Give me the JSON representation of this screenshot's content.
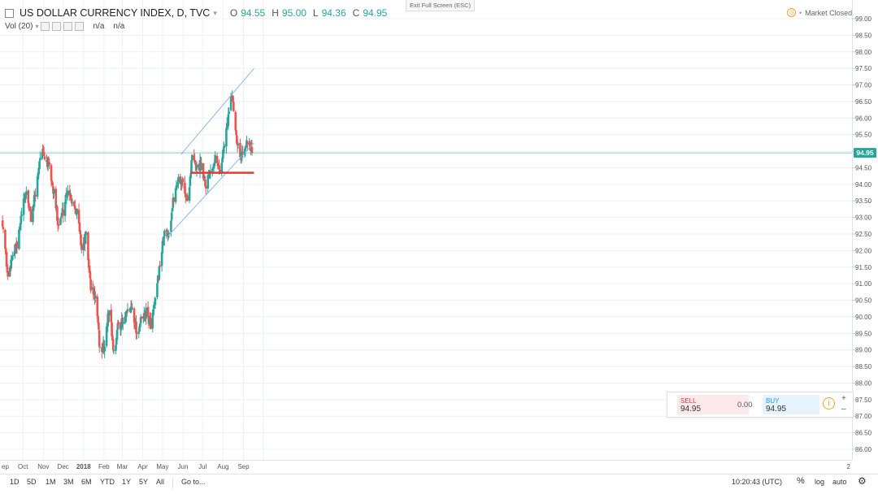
{
  "header": {
    "symbol": "US DOLLAR CURRENCY INDEX, D, TVC",
    "o_label": "O",
    "o_value": "94.55",
    "h_label": "H",
    "h_value": "95.00",
    "l_label": "L",
    "l_value": "94.36",
    "c_label": "C",
    "c_value": "94.95"
  },
  "volume": {
    "label": "Vol (20)",
    "v1": "n/a",
    "v2": "n/a"
  },
  "exit_fullscreen": "Exit Full Screen (ESC)",
  "market_status": "Market Closed",
  "current_price_label": "94.95",
  "trade_panel": {
    "sell_label": "SELL",
    "sell_value": "94.95",
    "spread": "0.00",
    "buy_label": "BUY",
    "buy_value": "94.95"
  },
  "bottom_bar": {
    "ranges": [
      "1D",
      "5D",
      "1M",
      "3M",
      "6M",
      "YTD",
      "1Y",
      "5Y",
      "All"
    ],
    "goto": "Go to...",
    "clock": "10:20:43 (UTC)",
    "percent": "%",
    "log": "log",
    "auto": "auto"
  },
  "colors": {
    "up": "#26a69a",
    "down": "#ef5350",
    "channel": "#8fb6e6",
    "support": "#e53935",
    "price_line": "#26a69a",
    "price_label_bg": "#26a69a"
  },
  "chart_data": {
    "type": "candlestick",
    "y_axis_ticks": [
      "86.00",
      "86.50",
      "87.00",
      "87.50",
      "88.00",
      "88.50",
      "89.00",
      "89.50",
      "90.00",
      "90.50",
      "91.00",
      "91.50",
      "92.00",
      "92.50",
      "93.00",
      "93.50",
      "94.00",
      "94.50",
      "95.00",
      "95.50",
      "96.00",
      "96.50",
      "97.00",
      "97.50",
      "98.00",
      "98.50",
      "99.00"
    ],
    "ylim": [
      85.8,
      99.3
    ],
    "x_axis_labels": [
      "ep",
      "Oct",
      "Nov",
      "Dec",
      "2018",
      "Feb",
      "Mar",
      "Apr",
      "May",
      "Jun",
      "Jul",
      "Aug",
      "Sep",
      "2"
    ],
    "last_price": 94.95,
    "anchors": [
      [
        "2017-08-31",
        92.9
      ],
      [
        "2017-09-08",
        91.2
      ],
      [
        "2017-09-15",
        91.9
      ],
      [
        "2017-09-22",
        92.1
      ],
      [
        "2017-09-29",
        93.1
      ],
      [
        "2017-10-06",
        93.8
      ],
      [
        "2017-10-13",
        93.0
      ],
      [
        "2017-10-20",
        93.7
      ],
      [
        "2017-10-27",
        94.9
      ],
      [
        "2017-11-03",
        94.8
      ],
      [
        "2017-11-10",
        94.5
      ],
      [
        "2017-11-17",
        93.7
      ],
      [
        "2017-11-24",
        92.8
      ],
      [
        "2017-12-01",
        93.2
      ],
      [
        "2017-12-08",
        93.9
      ],
      [
        "2017-12-15",
        93.5
      ],
      [
        "2017-12-22",
        93.2
      ],
      [
        "2017-12-29",
        92.1
      ],
      [
        "2018-01-05",
        92.4
      ],
      [
        "2018-01-12",
        90.9
      ],
      [
        "2018-01-19",
        90.6
      ],
      [
        "2018-01-26",
        89.0
      ],
      [
        "2018-02-02",
        89.1
      ],
      [
        "2018-02-09",
        90.3
      ],
      [
        "2018-02-16",
        88.9
      ],
      [
        "2018-02-23",
        89.8
      ],
      [
        "2018-03-02",
        89.8
      ],
      [
        "2018-03-09",
        90.1
      ],
      [
        "2018-03-16",
        90.3
      ],
      [
        "2018-03-23",
        89.5
      ],
      [
        "2018-03-30",
        89.9
      ],
      [
        "2018-04-06",
        90.1
      ],
      [
        "2018-04-13",
        89.8
      ],
      [
        "2018-04-20",
        90.4
      ],
      [
        "2018-04-27",
        91.6
      ],
      [
        "2018-05-04",
        92.5
      ],
      [
        "2018-05-11",
        92.6
      ],
      [
        "2018-05-18",
        93.6
      ],
      [
        "2018-05-25",
        94.2
      ],
      [
        "2018-06-01",
        94.0
      ],
      [
        "2018-06-08",
        93.5
      ],
      [
        "2018-06-15",
        94.8
      ],
      [
        "2018-06-22",
        94.5
      ],
      [
        "2018-06-29",
        94.6
      ],
      [
        "2018-07-06",
        94.0
      ],
      [
        "2018-07-13",
        94.5
      ],
      [
        "2018-07-20",
        94.8
      ],
      [
        "2018-07-27",
        94.4
      ],
      [
        "2018-08-03",
        95.2
      ],
      [
        "2018-08-10",
        96.2
      ],
      [
        "2018-08-15",
        96.7
      ],
      [
        "2018-08-21",
        95.5
      ],
      [
        "2018-08-28",
        94.8
      ],
      [
        "2018-09-04",
        95.3
      ],
      [
        "2018-09-10",
        95.1
      ],
      [
        "2018-09-14",
        94.95
      ]
    ],
    "annotations": [
      {
        "type": "channel-upper",
        "from": [
          "2018-05-29",
          94.9
        ],
        "to": [
          "2018-09-17",
          97.5
        ]
      },
      {
        "type": "channel-lower",
        "from": [
          "2018-05-10",
          92.45
        ],
        "to": [
          "2018-09-17",
          95.25
        ]
      },
      {
        "type": "support-line",
        "from": [
          "2018-06-12",
          94.35
        ],
        "to": [
          "2018-09-17",
          94.35
        ]
      },
      {
        "type": "price-line",
        "value": 94.95
      }
    ]
  }
}
